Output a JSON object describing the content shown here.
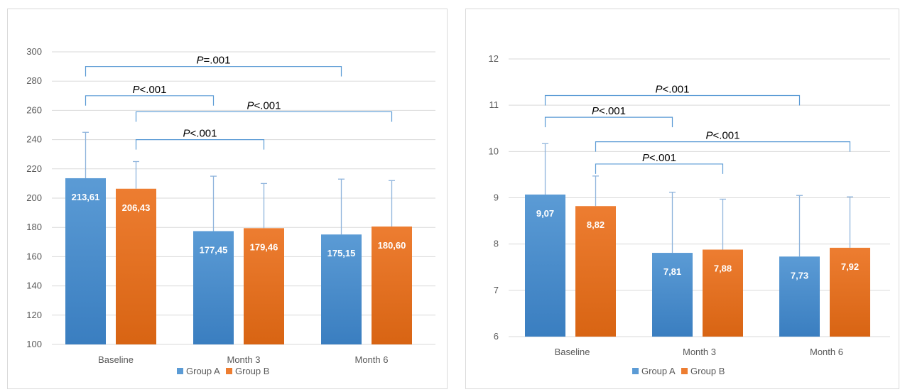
{
  "colors": {
    "group_a": "#5b9bd5",
    "group_a_dark": "#3a7ec0",
    "group_b": "#ed7d31",
    "group_b_dark": "#d86413",
    "bracket": "#5b9bd5",
    "grid": "#d9d9d9",
    "error_bar": "#8fb4dc"
  },
  "chart_data": [
    {
      "type": "bar",
      "title": "",
      "xlabel": "",
      "ylabel": "",
      "ylim": [
        100,
        300
      ],
      "ytick_step": 20,
      "grid": true,
      "legend_position": "bottom",
      "categories": [
        "Baseline",
        "Month 3",
        "Month 6"
      ],
      "series": [
        {
          "name": "Group A",
          "values": [
            213.61,
            177.45,
            175.15
          ],
          "labels": [
            "213,61",
            "177,45",
            "175,15"
          ],
          "error_upper": [
            245,
            215,
            213
          ]
        },
        {
          "name": "Group B",
          "values": [
            206.43,
            179.46,
            180.6
          ],
          "labels": [
            "206,43",
            "179,46",
            "180,60"
          ],
          "error_upper": [
            225,
            210,
            212
          ]
        }
      ],
      "annotations": [
        {
          "italic": "P",
          "rest": "=.001",
          "from": [
            0,
            0
          ],
          "to": [
            2,
            0
          ],
          "level": 290
        },
        {
          "italic": "P",
          "rest": "<.001",
          "from": [
            0,
            0
          ],
          "to": [
            1,
            0
          ],
          "level": 270
        },
        {
          "italic": "P",
          "rest": "<.001",
          "from": [
            0,
            1
          ],
          "to": [
            2,
            1
          ],
          "level": 259
        },
        {
          "italic": "P",
          "rest": "<.001",
          "from": [
            0,
            1
          ],
          "to": [
            1,
            1
          ],
          "level": 240
        }
      ]
    },
    {
      "type": "bar",
      "title": "",
      "xlabel": "",
      "ylabel": "",
      "ylim": [
        6,
        12
      ],
      "ytick_step": 1,
      "grid": true,
      "legend_position": "bottom",
      "categories": [
        "Baseline",
        "Month 3",
        "Month 6"
      ],
      "series": [
        {
          "name": "Group A",
          "values": [
            9.07,
            7.81,
            7.73
          ],
          "labels": [
            "9,07",
            "7,81",
            "7,73"
          ],
          "error_upper": [
            10.17,
            9.12,
            9.05
          ]
        },
        {
          "name": "Group B",
          "values": [
            8.82,
            7.88,
            7.92
          ],
          "labels": [
            "8,82",
            "7,88",
            "7,92"
          ],
          "error_upper": [
            9.47,
            8.97,
            9.02
          ]
        }
      ],
      "annotations": [
        {
          "italic": "P",
          "rest": "<.001",
          "from": [
            0,
            0
          ],
          "to": [
            2,
            0
          ],
          "level": 11.21
        },
        {
          "italic": "P",
          "rest": "<.001",
          "from": [
            0,
            0
          ],
          "to": [
            1,
            0
          ],
          "level": 10.74
        },
        {
          "italic": "P",
          "rest": "<.001",
          "from": [
            0,
            1
          ],
          "to": [
            2,
            1
          ],
          "level": 10.21
        },
        {
          "italic": "P",
          "rest": "<.001",
          "from": [
            0,
            1
          ],
          "to": [
            1,
            1
          ],
          "level": 9.73
        }
      ]
    }
  ]
}
